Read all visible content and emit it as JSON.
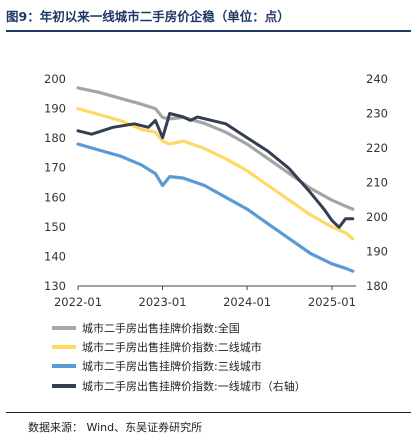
{
  "header": {
    "title": "图9：年初以来一线城市二手房价企稳（单位：点）"
  },
  "footer": {
    "source": "数据来源： Wind、东吴证券研究所"
  },
  "chart_data": {
    "type": "line",
    "x_ticks": [
      "2022-01",
      "2023-01",
      "2024-01",
      "2025-01"
    ],
    "left_axis": {
      "range": [
        130,
        200
      ],
      "ticks": [
        130,
        140,
        150,
        160,
        170,
        180,
        190,
        200
      ]
    },
    "right_axis": {
      "range": [
        180,
        240
      ],
      "ticks": [
        180,
        190,
        200,
        210,
        220,
        230,
        240
      ]
    },
    "grid": false,
    "legend_position": "bottom",
    "series": [
      {
        "name": "城市二手房出售挂牌价指数:全国",
        "axis": "left",
        "color": "#a5a5a5",
        "data": [
          [
            "2022-01",
            197
          ],
          [
            "2022-04",
            195.5
          ],
          [
            "2022-07",
            193.5
          ],
          [
            "2022-10",
            191.5
          ],
          [
            "2022-12",
            190
          ],
          [
            "2023-01",
            187
          ],
          [
            "2023-02",
            186.5
          ],
          [
            "2023-04",
            187
          ],
          [
            "2023-07",
            185
          ],
          [
            "2023-10",
            182
          ],
          [
            "2024-01",
            178
          ],
          [
            "2024-04",
            173
          ],
          [
            "2024-07",
            168
          ],
          [
            "2024-10",
            163
          ],
          [
            "2025-01",
            159
          ],
          [
            "2025-03",
            157
          ],
          [
            "2025-04",
            156
          ]
        ]
      },
      {
        "name": "城市二手房出售挂牌价指数:二线城市",
        "axis": "left",
        "color": "#ffd966",
        "data": [
          [
            "2022-01",
            190
          ],
          [
            "2022-04",
            188
          ],
          [
            "2022-07",
            186
          ],
          [
            "2022-10",
            183
          ],
          [
            "2022-12",
            182
          ],
          [
            "2023-01",
            179
          ],
          [
            "2023-02",
            178
          ],
          [
            "2023-04",
            179
          ],
          [
            "2023-07",
            176.5
          ],
          [
            "2023-10",
            173
          ],
          [
            "2024-01",
            169
          ],
          [
            "2024-04",
            164
          ],
          [
            "2024-07",
            159
          ],
          [
            "2024-10",
            154
          ],
          [
            "2025-01",
            150
          ],
          [
            "2025-03",
            148
          ],
          [
            "2025-04",
            146
          ]
        ]
      },
      {
        "name": "城市二手房出售挂牌价指数:三线城市",
        "axis": "left",
        "color": "#5b9bd5",
        "data": [
          [
            "2022-01",
            178
          ],
          [
            "2022-04",
            176
          ],
          [
            "2022-07",
            174
          ],
          [
            "2022-10",
            171
          ],
          [
            "2022-12",
            168
          ],
          [
            "2023-01",
            164
          ],
          [
            "2023-02",
            167
          ],
          [
            "2023-04",
            166.5
          ],
          [
            "2023-07",
            164
          ],
          [
            "2023-10",
            160
          ],
          [
            "2024-01",
            156
          ],
          [
            "2024-04",
            151
          ],
          [
            "2024-07",
            146
          ],
          [
            "2024-10",
            141
          ],
          [
            "2025-01",
            137.5
          ],
          [
            "2025-03",
            136
          ],
          [
            "2025-04",
            135
          ]
        ]
      },
      {
        "name": "城市二手房出售挂牌价指数:一线城市（右轴）",
        "axis": "right",
        "color": "#333f50",
        "data": [
          [
            "2022-01",
            225
          ],
          [
            "2022-03",
            224
          ],
          [
            "2022-06",
            226
          ],
          [
            "2022-09",
            227
          ],
          [
            "2022-11",
            226
          ],
          [
            "2022-12",
            228
          ],
          [
            "2023-01",
            223
          ],
          [
            "2023-02",
            230
          ],
          [
            "2023-04",
            229
          ],
          [
            "2023-05",
            228
          ],
          [
            "2023-06",
            229
          ],
          [
            "2023-08",
            228
          ],
          [
            "2023-10",
            227
          ],
          [
            "2024-01",
            223
          ],
          [
            "2024-04",
            219
          ],
          [
            "2024-07",
            214
          ],
          [
            "2024-10",
            207
          ],
          [
            "2024-12",
            202
          ],
          [
            "2025-01",
            199
          ],
          [
            "2025-02",
            197
          ],
          [
            "2025-03",
            199.5
          ],
          [
            "2025-04",
            199.5
          ]
        ]
      }
    ]
  }
}
